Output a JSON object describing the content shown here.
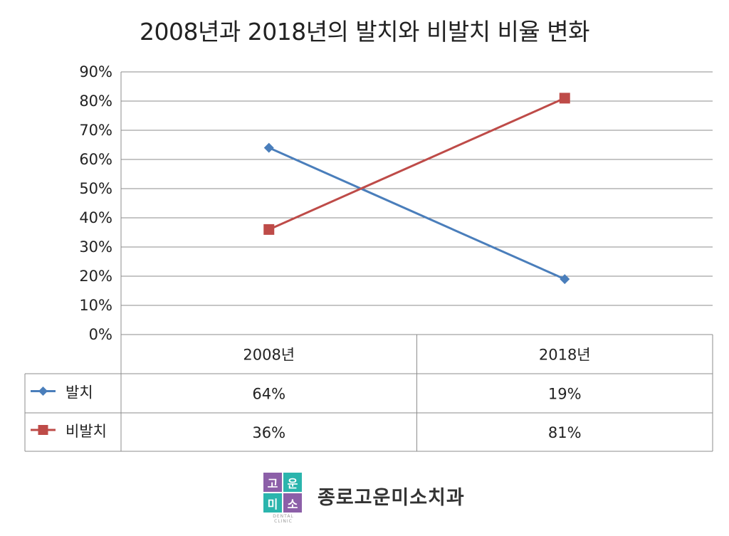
{
  "chart_data": {
    "type": "line",
    "title": "2008년과 2018년의 발치와 비발치 비율 변화",
    "categories": [
      "2008년",
      "2018년"
    ],
    "y_ticks": [
      "0%",
      "10%",
      "20%",
      "30%",
      "40%",
      "50%",
      "60%",
      "70%",
      "80%",
      "90%"
    ],
    "ylim": [
      0,
      90
    ],
    "grid": true,
    "legend": "data table below plot",
    "series": [
      {
        "name": "발치",
        "values": [
          64,
          19
        ],
        "labels": [
          "64%",
          "19%"
        ],
        "color": "#4a7ebb",
        "marker": "diamond"
      },
      {
        "name": "비발치",
        "values": [
          36,
          81
        ],
        "labels": [
          "36%",
          "81%"
        ],
        "color": "#be4b48",
        "marker": "square"
      }
    ]
  },
  "logo": {
    "cells": [
      {
        "text": "고",
        "color": "#8c5fa8"
      },
      {
        "text": "운",
        "color": "#2bb5ad"
      },
      {
        "text": "미",
        "color": "#2bb5ad"
      },
      {
        "text": "소",
        "color": "#8c5fa8"
      }
    ],
    "subtext": "DENTAL CLINIC"
  },
  "clinic_name": "종로고운미소치과"
}
